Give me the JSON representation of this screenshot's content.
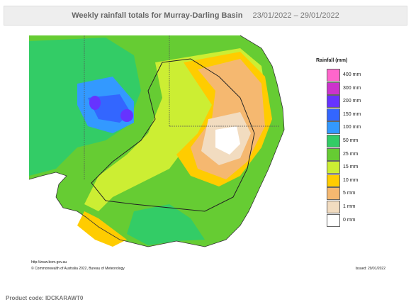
{
  "header": {
    "title": "Weekly rainfall totals for Murray-Darling Basin",
    "date_range": "23/01/2022 – 29/01/2022"
  },
  "legend": {
    "title": "Rainfall (mm)",
    "items": [
      {
        "label": "400 mm",
        "color": "#ff66cc"
      },
      {
        "label": "300 mm",
        "color": "#cc33cc"
      },
      {
        "label": "200 mm",
        "color": "#6633ff"
      },
      {
        "label": "150 mm",
        "color": "#3366ff"
      },
      {
        "label": "100 mm",
        "color": "#3399ff"
      },
      {
        "label": "50 mm",
        "color": "#33cc66"
      },
      {
        "label": "25 mm",
        "color": "#66cc33"
      },
      {
        "label": "15 mm",
        "color": "#ccee33"
      },
      {
        "label": "10 mm",
        "color": "#ffcc00"
      },
      {
        "label": "5 mm",
        "color": "#f5b870"
      },
      {
        "label": "1 mm",
        "color": "#f2dcc0"
      },
      {
        "label": "0 mm",
        "color": "#ffffff"
      }
    ]
  },
  "map": {
    "url": "http://www.bom.gov.au",
    "copyright": "© Commonwealth of Australia 2022, Bureau of Meteorology",
    "issued": "Issued: 29/01/2022"
  },
  "footer": {
    "product_code": "Product code: IDCKARAWT0"
  }
}
